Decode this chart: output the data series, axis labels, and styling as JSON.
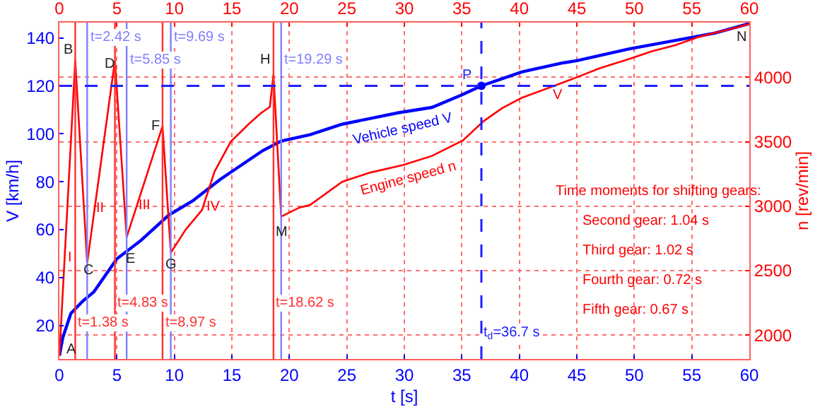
{
  "chart_data": {
    "type": "line",
    "xlabel": "t [s]",
    "ylabel": "V [km/h]",
    "y2label": "n [rev/min]",
    "xlim": [
      0,
      60
    ],
    "xticks": [
      0,
      5,
      10,
      15,
      20,
      25,
      30,
      35,
      40,
      45,
      50,
      55,
      60
    ],
    "x2lim": [
      0,
      60
    ],
    "x2ticks": [
      0,
      5,
      10,
      15,
      20,
      25,
      30,
      35,
      40,
      45,
      50,
      55,
      60
    ],
    "ylim": [
      6,
      146.4
    ],
    "yticks": [
      20,
      40,
      60,
      80,
      100,
      120,
      140
    ],
    "y2lim": [
      1815,
      4424
    ],
    "y2ticks": [
      2000,
      2500,
      3000,
      3500,
      4000
    ],
    "grid": true,
    "marker": "none",
    "line_style": "solid",
    "series": [
      {
        "color": "#0000ff",
        "x": [
          0,
          0.3,
          1,
          2,
          3,
          5,
          7.1,
          9.5,
          11.6,
          14,
          17.7,
          19.3,
          21.8,
          24.6,
          29.5,
          32.4,
          34.9,
          36.7,
          40.2,
          43.8,
          45,
          49.5,
          53.6,
          57,
          60
        ],
        "values": [
          7.3,
          15,
          25,
          30,
          34,
          47.8,
          55.5,
          66,
          72,
          81,
          93,
          97,
          99.6,
          104,
          108.8,
          111,
          116,
          120,
          125.8,
          129.6,
          130.5,
          135.4,
          139,
          142,
          146
        ]
      },
      {
        "color": "#ff0000",
        "axis": "y2",
        "x": [
          0,
          1.38,
          2.42,
          4.83,
          5.85,
          8.97,
          9.69,
          11,
          12.4,
          13.5,
          14.9,
          16.5,
          17.5,
          18.3,
          18.62,
          19.29,
          20.9,
          21.8,
          24.6,
          27,
          29.9,
          32.4,
          35.1,
          36.9,
          38.5,
          40.2,
          43.8,
          45,
          47,
          49.5,
          51.5,
          53.6,
          55.5,
          57.7,
          59.9,
          60
        ],
        "values": [
          1840,
          4130,
          2560,
          4130,
          2760,
          3620,
          2640,
          2820,
          2970,
          3270,
          3500,
          3640,
          3720,
          3770,
          4020,
          2920,
          2990,
          3010,
          3190,
          3260,
          3320,
          3390,
          3510,
          3660,
          3760,
          3840,
          3960,
          4000,
          4070,
          4140,
          4200,
          4250,
          4310,
          4360,
          4410,
          4420
        ]
      },
      {
        "type": "scatter",
        "color": "#0000ff",
        "marker": "circle",
        "x": [
          36.7
        ],
        "values": [
          120
        ]
      }
    ],
    "ref_lines": [
      {
        "axis": "x",
        "value": 1.38,
        "label": "t=1.38 s",
        "color": "#ff3030"
      },
      {
        "axis": "x",
        "value": 4.83,
        "label": "t=4.83 s",
        "color": "#ff3030"
      },
      {
        "axis": "x",
        "value": 8.97,
        "label": "t=8.97 s",
        "color": "#ff3030"
      },
      {
        "axis": "x",
        "value": 18.62,
        "label": "t=18.62 s",
        "color": "#ff3030"
      },
      {
        "axis": "x",
        "value": 2.42,
        "label": "t=2.42 s",
        "color": "#8080ff"
      },
      {
        "axis": "x",
        "value": 5.85,
        "label": "t=5.85 s",
        "color": "#8080ff"
      },
      {
        "axis": "x",
        "value": 9.69,
        "label": "t=9.69 s",
        "color": "#8080ff"
      },
      {
        "axis": "x",
        "value": 19.29,
        "label": "t=19.29 s",
        "color": "#8080ff"
      },
      {
        "axis": "x",
        "value": 36.7,
        "label": "t$_{d}$=36.7 s",
        "color": "#2020ff",
        "line_style": "dashed"
      },
      {
        "axis": "y",
        "value": 120,
        "color": "#2020ff",
        "line_style": "dashed"
      }
    ],
    "annotations": [
      {
        "text": "A",
        "x": 1,
        "y": 10
      },
      {
        "text": "B",
        "x": 0.8,
        "y": 134.7
      },
      {
        "text": "C",
        "x": 2.5,
        "y": 43
      },
      {
        "text": "D",
        "x": 4.4,
        "y": 129
      },
      {
        "text": "E",
        "x": 6.2,
        "y": 47.8
      },
      {
        "text": "F",
        "x": 8.4,
        "y": 103
      },
      {
        "text": "G",
        "x": 9.7,
        "y": 45
      },
      {
        "text": "M",
        "x": 19.3,
        "y": 59
      },
      {
        "text": "I",
        "x": 0.95,
        "y": 48
      },
      {
        "text": "II",
        "x": 3.6,
        "y": 69
      },
      {
        "text": "III",
        "x": 7.4,
        "y": 70
      },
      "H",
      "N",
      "P",
      "IV",
      "V",
      "Vehicle speed V",
      "Engine speed n",
      "Time moments for shifting gears:",
      "Second gear: 1.04 s",
      "Third gear: 1.02 s",
      "Fourth gear: 0.72 s",
      "Fifth gear: 0.67 s"
    ]
  }
}
